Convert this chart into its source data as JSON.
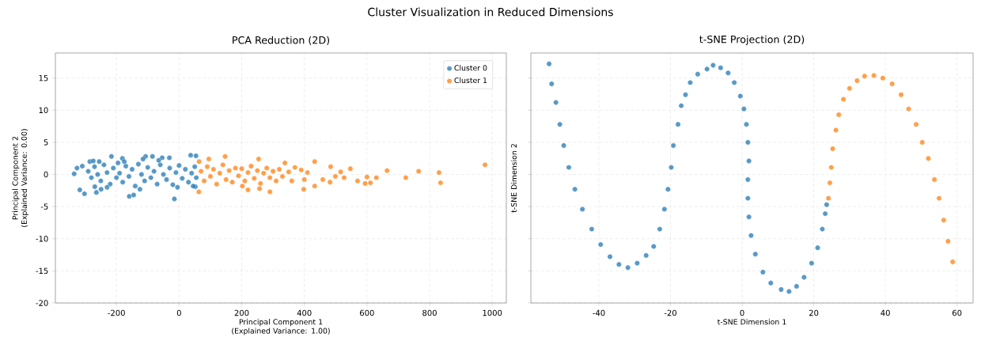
{
  "chart_data": [
    {
      "type": "scatter",
      "title": "PCA Reduction (2D)",
      "xlabel": "Principal Component 1 (Explained Variance: 1.00)",
      "ylabel": "Principal Component 2 (Explained Variance: 0.00)",
      "annotations": [
        "Cluster Visualization in Reduced Dimensions"
      ],
      "xlim": [
        -395,
        1045
      ],
      "ylim": [
        -20,
        18.9
      ],
      "xticks": [
        -200,
        0,
        200,
        400,
        600,
        800,
        1000
      ],
      "yticks": [
        -20,
        -15,
        -10,
        -5,
        0,
        5,
        10,
        15
      ],
      "grid": true,
      "legend": "top right",
      "marker": "circle",
      "series": [
        {
          "name": "Cluster 0",
          "color": "#1f77b4",
          "x": [
            -335,
            -326,
            -309,
            -317,
            -302,
            -285,
            -274,
            -269,
            -264,
            -249,
            -216,
            -181,
            -159,
            -145,
            -107,
            -85,
            -54,
            -31,
            -15,
            37,
            54,
            52,
            -290,
            -280,
            -270,
            -260,
            -250,
            -240,
            -230,
            -220,
            -210,
            -200,
            -195,
            -190,
            -180,
            -170,
            -160,
            -150,
            -140,
            -130,
            -120,
            -110,
            -100,
            -90,
            -80,
            -70,
            -60,
            -50,
            -40,
            -30,
            -20,
            -10,
            0,
            10,
            20,
            30,
            40,
            50,
            55,
            -230,
            -175,
            -125,
            -65,
            -5,
            45,
            -255,
            -115
          ],
          "values": [
            0.1,
            1,
            1.3,
            -2.4,
            -3,
            2,
            2.1,
            -1.9,
            -2.8,
            -2.3,
            2.8,
            2.5,
            -3.4,
            -3.2,
            2.8,
            2.8,
            2.6,
            2.6,
            -3.8,
            3,
            2.9,
            -1.9,
            0.5,
            -0.5,
            1.2,
            0,
            -1,
            1.5,
            0.3,
            -1.5,
            1,
            -0.5,
            1.8,
            0.2,
            -1.2,
            1.3,
            -0.3,
            0.8,
            -1.8,
            1.6,
            0,
            -1,
            1.1,
            -0.5,
            0.5,
            -1.5,
            1.5,
            0,
            -0.8,
            1,
            -1.6,
            0.3,
            1.4,
            -0.6,
            0.8,
            -1.2,
            0.2,
            1.2,
            -0.5,
            -2,
            2,
            -2.3,
            2.2,
            -2,
            -1.8,
            2,
            2.4
          ]
        },
        {
          "name": "Cluster 1",
          "color": "#ff7f0e",
          "x": [
            64,
            63,
            95,
            147,
            254,
            338,
            433,
            484,
            547,
            664,
            765,
            830,
            835,
            977,
            724,
            630,
            600,
            594,
            611,
            570,
            527,
            499,
            516,
            482,
            459,
            398,
            433,
            290,
            220,
            257,
            202,
            70,
            80,
            90,
            100,
            110,
            120,
            130,
            140,
            150,
            160,
            170,
            180,
            190,
            200,
            210,
            220,
            230,
            240,
            250,
            260,
            270,
            280,
            290,
            300,
            310,
            320,
            330,
            350,
            360,
            370,
            390,
            400,
            410
          ],
          "values": [
            2,
            -2.7,
            2.4,
            2.8,
            2.4,
            1.8,
            2,
            1.2,
            0.9,
            0.6,
            0.5,
            0.3,
            -1.3,
            1.5,
            -0.5,
            -0.5,
            -0.4,
            -1.4,
            -1.3,
            -1,
            -0.5,
            -0.3,
            0.4,
            -1.2,
            -0.8,
            -2.3,
            -1.8,
            -2.7,
            -2.4,
            -2.2,
            -1.8,
            0.5,
            -1,
            1.2,
            -0.3,
            0.8,
            -1.5,
            0.2,
            1.5,
            -0.8,
            0.6,
            -1.2,
            1,
            -0.2,
            0.9,
            -1,
            0.3,
            1.3,
            -0.6,
            0.6,
            -1.4,
            0.2,
            1,
            -0.5,
            0.5,
            -1,
            0.8,
            -0.3,
            0.4,
            -1,
            1.1,
            0.7,
            -0.8,
            0.3
          ]
        }
      ]
    },
    {
      "type": "scatter",
      "title": "t-SNE Projection (2D)",
      "xlabel": "t-SNE Dimension 1",
      "ylabel": "t-SNE Dimension 2",
      "xlim": [
        -59,
        64.5
      ],
      "ylim": [
        -20,
        18.9
      ],
      "xticks": [
        -40,
        -20,
        0,
        20,
        40,
        60
      ],
      "yticks": [
        -20,
        -15,
        -10,
        -5,
        0,
        5,
        10,
        15
      ],
      "tick_labels": "x",
      "grid": true,
      "marker": "circle",
      "series": [
        {
          "color": "#1f77b4",
          "x": [
            -53.9,
            -53.2,
            -52,
            -50.9,
            -49.8,
            -48.4,
            -46.7,
            -44.6,
            -42,
            -39.5,
            -36.9,
            -34.4,
            -31.9,
            -29.3,
            -26.8,
            -24.7,
            -23,
            -21.7,
            -20.7,
            -19.8,
            -19.2,
            -17.9,
            -17,
            -15.8,
            -14.5,
            -12.4,
            -9.8,
            -8.1,
            -6,
            -3.9,
            -2.2,
            -0.5,
            0.5,
            1.2,
            1.6,
            1.9,
            1.6,
            1.6,
            1.9,
            2.5,
            3.7,
            5.8,
            8,
            10.9,
            13.1,
            15.2,
            17.3,
            19.4,
            21.1,
            22.4,
            23.2,
            23.6
          ],
          "values": [
            17.2,
            14.1,
            11.2,
            7.8,
            4.5,
            1.1,
            -2.3,
            -5.4,
            -8.5,
            -10.9,
            -12.8,
            -14,
            -14.5,
            -13.8,
            -12.6,
            -11.2,
            -8.5,
            -5.4,
            -2.3,
            1.1,
            4.5,
            7.8,
            10.7,
            12.4,
            14.3,
            15.6,
            16.4,
            17,
            16.6,
            15.8,
            14.3,
            12.2,
            10.2,
            7.8,
            5,
            2.1,
            -0.8,
            -3.7,
            -6.6,
            -9.5,
            -12.4,
            -15.2,
            -16.9,
            -17.9,
            -18.2,
            -17.4,
            -16,
            -13.8,
            -11.4,
            -8.5,
            -6.1,
            -4.7
          ]
        },
        {
          "color": "#ff7f0e",
          "x": [
            24.1,
            24.5,
            24.9,
            25.3,
            26.2,
            27,
            28.3,
            30,
            32.1,
            34.2,
            36.8,
            39.3,
            41.9,
            44.4,
            46.5,
            48.6,
            50.3,
            52,
            53.7,
            55,
            56.3,
            57.5,
            58.8
          ],
          "values": [
            -3.7,
            -1.3,
            1.1,
            4,
            6.9,
            9.3,
            11.7,
            13.4,
            14.6,
            15.3,
            15.4,
            15,
            14.1,
            12.4,
            10.2,
            7.8,
            5,
            2.5,
            -0.8,
            -3.7,
            -7.1,
            -10.4,
            -13.6
          ]
        }
      ]
    }
  ]
}
